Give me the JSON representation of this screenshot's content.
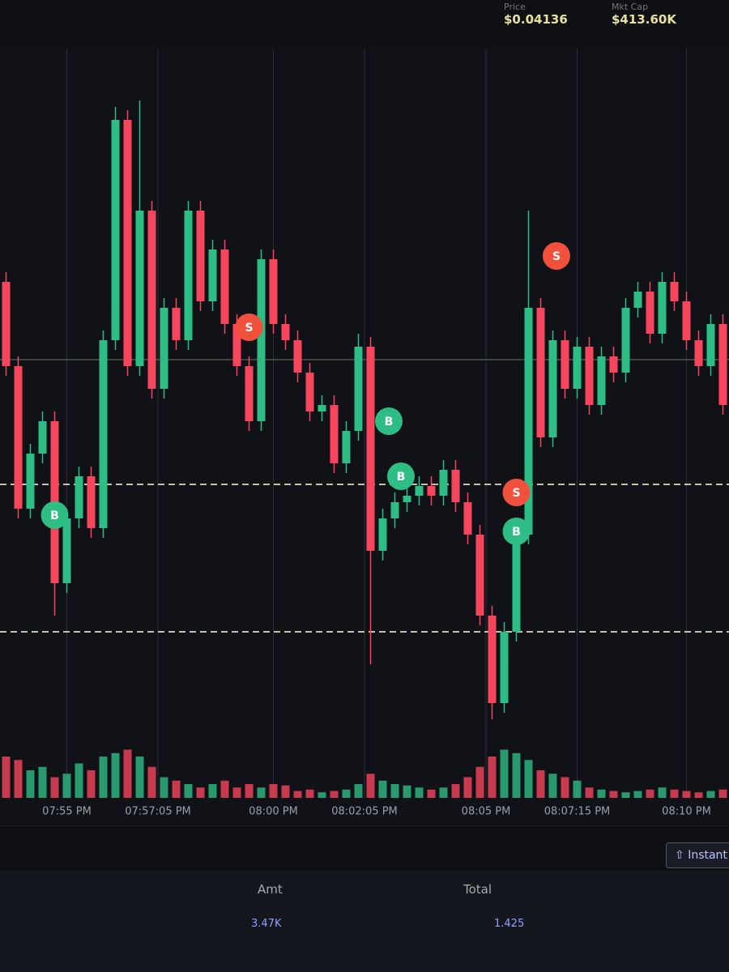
{
  "header": {
    "stats": [
      {
        "label": "Price",
        "value": "$0.04136"
      },
      {
        "label": "Mkt Cap",
        "value": "$413.60K"
      }
    ]
  },
  "chart_data": {
    "type": "candlestick",
    "up_color": "#2ebd85",
    "down_color": "#f6465d",
    "open": [
      69,
      56,
      34,
      42.5,
      47.5,
      22.5,
      32.5,
      39,
      31,
      60,
      94,
      56,
      80,
      52.5,
      65,
      60,
      80,
      66,
      74,
      62.5,
      56,
      47.5,
      72.5,
      62.5,
      60,
      55,
      49,
      50,
      41,
      46,
      59,
      27.5,
      32.5,
      35,
      36,
      37.5,
      36,
      40,
      35,
      30,
      17.5,
      4,
      15,
      30,
      65,
      45,
      60,
      52.5,
      59,
      50,
      57.5,
      55,
      65,
      67.5,
      61,
      69,
      66,
      60,
      56,
      62.5
    ],
    "high": [
      70.5,
      57.5,
      44,
      49,
      49,
      34,
      40.5,
      40.5,
      61.5,
      96,
      95.5,
      97,
      81.5,
      66.5,
      66.5,
      81.5,
      81.5,
      75.5,
      75.5,
      64,
      57.5,
      74,
      74,
      64,
      61.5,
      56.5,
      51.5,
      51.5,
      47.5,
      61,
      60.5,
      34,
      36.5,
      37.5,
      39,
      39,
      41.5,
      41.5,
      36.5,
      31.5,
      19,
      16.5,
      31.5,
      80,
      66.5,
      61.5,
      61.5,
      60.5,
      60.5,
      59,
      59,
      66.5,
      69,
      69,
      70.5,
      70.5,
      67.5,
      61.5,
      64,
      64
    ],
    "low": [
      54.5,
      32.5,
      32.5,
      41,
      17.5,
      21,
      31,
      29.5,
      29.5,
      58.5,
      54.5,
      54.5,
      51,
      51,
      58.5,
      58.5,
      64.5,
      64.5,
      61,
      54.5,
      46,
      46,
      61,
      58.5,
      53.5,
      47.5,
      47.5,
      39.5,
      39.5,
      44.5,
      10,
      26,
      31,
      33.5,
      34.5,
      34.5,
      34.5,
      33.5,
      28.5,
      16,
      1.5,
      2.5,
      13.5,
      28.5,
      43.5,
      43.5,
      51,
      51,
      48.5,
      48.5,
      53.5,
      53.5,
      63.5,
      59.5,
      59.5,
      64.5,
      58.5,
      54.5,
      54.5,
      48.5
    ],
    "close": [
      56,
      34,
      42.5,
      47.5,
      22.5,
      32.5,
      39,
      31,
      60,
      94,
      56,
      80,
      52.5,
      65,
      60,
      80,
      66,
      74,
      62.5,
      56,
      47.5,
      72.5,
      62.5,
      60,
      55,
      49,
      50,
      41,
      46,
      59,
      27.5,
      32.5,
      35,
      36,
      37.5,
      36,
      40,
      35,
      30,
      17.5,
      4,
      15,
      30,
      65,
      45,
      60,
      52.5,
      59,
      50,
      57.5,
      55,
      65,
      67.5,
      61,
      69,
      66,
      60,
      56,
      62.5,
      50
    ],
    "volume": [
      60,
      55,
      40,
      45,
      30,
      35,
      50,
      40,
      60,
      65,
      70,
      60,
      45,
      30,
      25,
      20,
      15,
      20,
      25,
      15,
      20,
      15,
      20,
      18,
      10,
      12,
      8,
      10,
      12,
      20,
      35,
      25,
      20,
      18,
      15,
      12,
      15,
      20,
      30,
      45,
      60,
      70,
      65,
      55,
      40,
      35,
      30,
      25,
      15,
      12,
      10,
      8,
      10,
      12,
      15,
      12,
      10,
      8,
      10,
      12
    ],
    "ylim": [
      0,
      100
    ],
    "volume_ylim": [
      0,
      100
    ],
    "xticks": [
      {
        "value": 5,
        "label": "07:55 PM"
      },
      {
        "value": 12.5,
        "label": "07:57:05 PM"
      },
      {
        "value": 22,
        "label": "08:00 PM"
      },
      {
        "value": 29.5,
        "label": "08:02:05 PM"
      },
      {
        "value": 39.5,
        "label": "08:05 PM"
      },
      {
        "value": 47,
        "label": "08:07:15 PM"
      },
      {
        "value": 56,
        "label": "08:10 PM"
      }
    ],
    "price_lines": [
      57,
      37.75,
      15
    ],
    "trades": [
      {
        "side": "B",
        "index": 4,
        "price": 33
      },
      {
        "side": "S",
        "index": 20,
        "price": 62
      },
      {
        "side": "B",
        "index": 31.5,
        "price": 47.5
      },
      {
        "side": "B",
        "index": 32.5,
        "price": 39
      },
      {
        "side": "S",
        "index": 42,
        "price": 36.5
      },
      {
        "side": "B",
        "index": 42,
        "price": 30.5
      },
      {
        "side": "S",
        "index": 45.3,
        "price": 73
      }
    ]
  },
  "controls": {
    "instant_button": "Instant"
  },
  "table": {
    "headers": [
      "Amt",
      "Total"
    ],
    "rows": [
      [
        "3.47K",
        "1.425"
      ]
    ]
  }
}
